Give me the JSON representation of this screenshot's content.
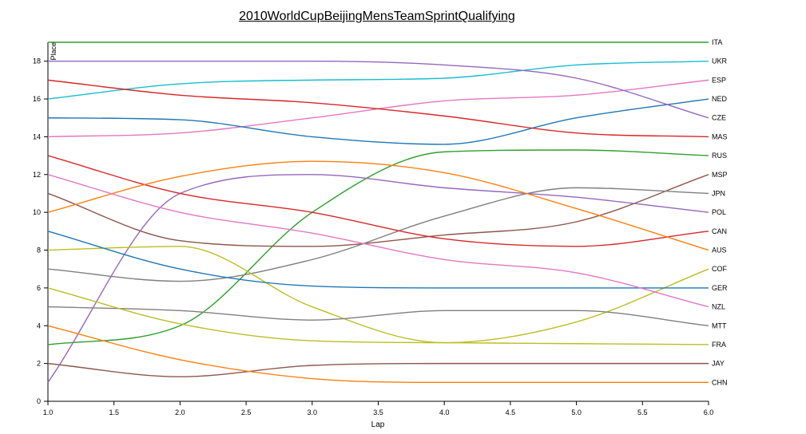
{
  "chart_data": {
    "type": "line",
    "title": "2010WorldCupBeijingMensTeamSprintQualifying",
    "xlabel": "Lap",
    "ylabel": "Place",
    "xlim": [
      1.0,
      6.0
    ],
    "ylim": [
      0,
      19
    ],
    "x": [
      1,
      2,
      3,
      4,
      5,
      6
    ],
    "x_ticks": [
      "1.0",
      "1.5",
      "2.0",
      "2.5",
      "3.0",
      "3.5",
      "4.0",
      "4.5",
      "5.0",
      "5.5",
      "6.0"
    ],
    "y_ticks": [
      "0",
      "2",
      "4",
      "6",
      "8",
      "10",
      "12",
      "14",
      "16",
      "18"
    ],
    "series": [
      {
        "name": "ITA",
        "color": "#2ca02c",
        "values": [
          19,
          19,
          19,
          19,
          19,
          19
        ]
      },
      {
        "name": "UKR",
        "color": "#17becf",
        "values": [
          16,
          16.8,
          17,
          17.1,
          17.8,
          18
        ]
      },
      {
        "name": "ESP",
        "color": "#e377c2",
        "values": [
          14,
          14.2,
          15,
          15.9,
          16.2,
          17
        ]
      },
      {
        "name": "NED",
        "color": "#1f77b4",
        "values": [
          15,
          14.9,
          14,
          13.6,
          15,
          16
        ]
      },
      {
        "name": "CZE",
        "color": "#9467bd",
        "values": [
          18,
          18,
          18,
          17.8,
          17.1,
          15
        ]
      },
      {
        "name": "MAS",
        "color": "#d62728",
        "values": [
          17,
          16.2,
          15.8,
          15.1,
          14.2,
          14
        ]
      },
      {
        "name": "RUS",
        "color": "#2ca02c",
        "values": [
          3,
          4,
          10,
          13.2,
          13.3,
          13
        ]
      },
      {
        "name": "MSP",
        "color": "#8c564b",
        "values": [
          11,
          8.5,
          8.2,
          8.8,
          9.5,
          12
        ]
      },
      {
        "name": "JPN",
        "color": "#7f7f7f",
        "values": [
          7,
          6.35,
          7.5,
          9.8,
          11.3,
          11
        ]
      },
      {
        "name": "POL",
        "color": "#9467bd",
        "values": [
          1,
          11,
          12,
          11.3,
          10.8,
          10
        ]
      },
      {
        "name": "CAN",
        "color": "#d62728",
        "values": [
          13,
          11,
          10,
          8.6,
          8.2,
          9
        ]
      },
      {
        "name": "AUS",
        "color": "#ff7f0e",
        "values": [
          10,
          11.9,
          12.7,
          12.1,
          10.2,
          8
        ]
      },
      {
        "name": "COF",
        "color": "#bcbd22",
        "values": [
          8,
          8.2,
          5,
          3.1,
          4.2,
          7
        ]
      },
      {
        "name": "GER",
        "color": "#1f77b4",
        "values": [
          9,
          7,
          6.1,
          6,
          6,
          6
        ]
      },
      {
        "name": "NZL",
        "color": "#e377c2",
        "values": [
          12,
          10,
          8.9,
          7.5,
          6.8,
          5
        ]
      },
      {
        "name": "MTT",
        "color": "#7f7f7f",
        "values": [
          5,
          4.8,
          4.3,
          4.8,
          4.8,
          4
        ]
      },
      {
        "name": "FRA",
        "color": "#bcbd22",
        "values": [
          6,
          4.1,
          3.2,
          3.1,
          3.05,
          3
        ]
      },
      {
        "name": "JAY",
        "color": "#8c564b",
        "values": [
          2,
          1.3,
          1.9,
          2,
          2,
          2
        ]
      },
      {
        "name": "CHN",
        "color": "#ff7f0e",
        "values": [
          4,
          2.2,
          1.2,
          1,
          1,
          1
        ]
      }
    ]
  }
}
